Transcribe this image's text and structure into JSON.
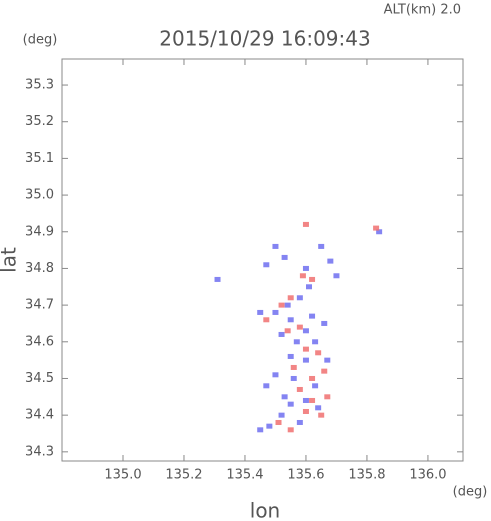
{
  "chart_data": {
    "type": "scatter",
    "title": "2015/10/29 16:09:43",
    "subtitle": "ALT(km) 2.0",
    "y_unit": "(deg)",
    "x_unit": "(deg)",
    "xlabel": "lon",
    "ylabel": "lat",
    "xlim": [
      134.8,
      136.115
    ],
    "ylim": [
      34.275,
      35.371
    ],
    "xticks": [
      {
        "value": 135.0,
        "label": "135.0"
      },
      135.2,
      135.4,
      135.6,
      135.8,
      {
        "value": 136.0,
        "label": "136.0"
      }
    ],
    "yticks": [
      34.3,
      34.4,
      34.5,
      34.6,
      34.7,
      34.8,
      34.9,
      {
        "value": 35.0,
        "label": "35.0"
      },
      35.1,
      35.2,
      35.3
    ],
    "series": [
      {
        "color": "#6f6ff0",
        "x": [
          135.5,
          135.53,
          135.47,
          135.6,
          135.65,
          135.68,
          135.7,
          135.61,
          135.58,
          135.54,
          135.5,
          135.55,
          135.62,
          135.66,
          135.6,
          135.52,
          135.57,
          135.63,
          135.55,
          135.6,
          135.5,
          135.56,
          135.47,
          135.63,
          135.6,
          135.55,
          135.52,
          135.64,
          135.45,
          135.48,
          135.58,
          135.45,
          135.84,
          135.31,
          135.67,
          135.53
        ],
        "values": [
          34.86,
          34.83,
          34.81,
          34.8,
          34.86,
          34.82,
          34.78,
          34.75,
          34.72,
          34.7,
          34.68,
          34.66,
          34.67,
          34.65,
          34.63,
          34.62,
          34.6,
          34.6,
          34.56,
          34.55,
          34.51,
          34.5,
          34.48,
          34.48,
          34.44,
          34.43,
          34.4,
          34.42,
          34.36,
          34.37,
          34.38,
          34.68,
          34.9,
          34.77,
          34.55,
          34.45
        ]
      },
      {
        "color": "#f07070",
        "x": [
          135.6,
          135.83,
          135.59,
          135.62,
          135.55,
          135.52,
          135.58,
          135.54,
          135.6,
          135.64,
          135.56,
          135.62,
          135.66,
          135.58,
          135.62,
          135.65,
          135.6,
          135.51,
          135.55,
          135.47,
          135.67
        ],
        "values": [
          34.92,
          34.91,
          34.78,
          34.77,
          34.72,
          34.7,
          34.64,
          34.63,
          34.58,
          34.57,
          34.53,
          34.5,
          34.52,
          34.47,
          34.44,
          34.4,
          34.41,
          34.38,
          34.36,
          34.66,
          34.45
        ]
      }
    ]
  }
}
